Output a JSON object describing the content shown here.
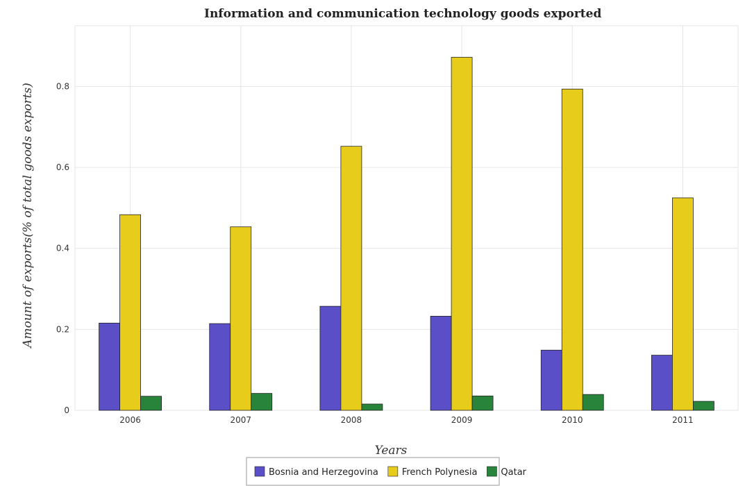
{
  "chart_data": {
    "type": "bar",
    "title": "Information and communication technology goods exported",
    "xlabel": "Years",
    "ylabel": "Amount of exports(% of total goods exports)",
    "categories": [
      "2006",
      "2007",
      "2008",
      "2009",
      "2010",
      "2011"
    ],
    "ylim": [
      0,
      0.95
    ],
    "yticks": [
      0,
      0.2,
      0.4,
      0.6,
      0.8
    ],
    "ytick_labels": [
      "0",
      "0.2",
      "0.4",
      "0.6",
      "0.8"
    ],
    "grid": true,
    "legend_position": "bottom-center",
    "series": [
      {
        "name": "Bosnia and Herzegovina",
        "color": "#5b4fc7",
        "values": [
          0.2155,
          0.2142,
          0.257,
          0.2325,
          0.1487,
          0.1362
        ]
      },
      {
        "name": "French Polynesia",
        "color": "#e8cc1c",
        "values": [
          0.4832,
          0.4532,
          0.6521,
          0.872,
          0.7935,
          0.5248
        ]
      },
      {
        "name": "Qatar",
        "color": "#27843a",
        "values": [
          0.0348,
          0.0418,
          0.0155,
          0.0355,
          0.0392,
          0.0222
        ]
      }
    ]
  }
}
